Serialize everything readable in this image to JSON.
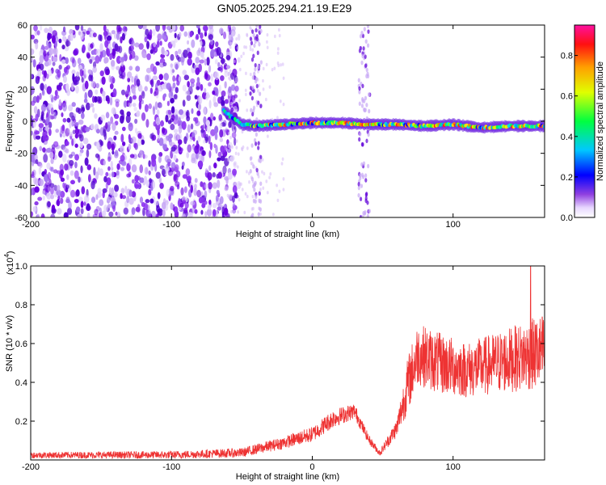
{
  "title": "GN05.2025.294.21.19.E29",
  "chart_data": [
    {
      "type": "heatmap",
      "xlabel": "Height of straight line (km)",
      "ylabel": "Frequency (Hz)",
      "xlim": [
        -200,
        165
      ],
      "ylim": [
        -60,
        60
      ],
      "xticks": [
        -200,
        -100,
        0,
        100
      ],
      "yticks": [
        -60,
        -40,
        -20,
        0,
        20,
        40,
        60
      ],
      "colorbar": {
        "label": "Normalized spectral amplitude",
        "range": [
          0,
          0.95
        ],
        "ticks": [
          0.0,
          0.2,
          0.4,
          0.6,
          0.8
        ]
      },
      "signal_track": [
        {
          "x": -63,
          "y": 7
        },
        {
          "x": -58,
          "y": 3
        },
        {
          "x": -50,
          "y": -2
        },
        {
          "x": -40,
          "y": -3
        },
        {
          "x": -20,
          "y": -2
        },
        {
          "x": 0,
          "y": -1
        },
        {
          "x": 20,
          "y": -1
        },
        {
          "x": 40,
          "y": -2
        },
        {
          "x": 60,
          "y": -2
        },
        {
          "x": 80,
          "y": -3
        },
        {
          "x": 100,
          "y": -2
        },
        {
          "x": 120,
          "y": -4
        },
        {
          "x": 140,
          "y": -3
        },
        {
          "x": 165,
          "y": -3
        }
      ],
      "noise_region_x": [
        -200,
        -60
      ],
      "vertical_streaks_x": [
        -40,
        37
      ]
    },
    {
      "type": "line",
      "xlabel": "Height of straight line (km)",
      "ylabel": "SNR (10 * v/v)",
      "yscale_label": "(x10",
      "yscale_exp": "4",
      "yscale_suffix": ")",
      "xlim": [
        -200,
        165
      ],
      "ylim": [
        0,
        1.0
      ],
      "xticks": [
        -200,
        -100,
        0,
        100
      ],
      "yticks": [
        0.2,
        0.4,
        0.6,
        0.8,
        1.0
      ],
      "color": "#ee3333",
      "envelope": [
        {
          "x": -200,
          "base": 0.02,
          "amp": 0.02
        },
        {
          "x": -100,
          "base": 0.02,
          "amp": 0.025
        },
        {
          "x": -50,
          "base": 0.03,
          "amp": 0.03
        },
        {
          "x": -20,
          "base": 0.08,
          "amp": 0.04
        },
        {
          "x": 0,
          "base": 0.12,
          "amp": 0.05
        },
        {
          "x": 15,
          "base": 0.2,
          "amp": 0.06
        },
        {
          "x": 30,
          "base": 0.24,
          "amp": 0.05
        },
        {
          "x": 40,
          "base": 0.1,
          "amp": 0.03
        },
        {
          "x": 48,
          "base": 0.03,
          "amp": 0.02
        },
        {
          "x": 60,
          "base": 0.15,
          "amp": 0.06
        },
        {
          "x": 68,
          "base": 0.35,
          "amp": 0.18
        },
        {
          "x": 75,
          "base": 0.5,
          "amp": 0.2
        },
        {
          "x": 90,
          "base": 0.45,
          "amp": 0.2
        },
        {
          "x": 110,
          "base": 0.42,
          "amp": 0.18
        },
        {
          "x": 130,
          "base": 0.45,
          "amp": 0.2
        },
        {
          "x": 150,
          "base": 0.48,
          "amp": 0.22
        },
        {
          "x": 165,
          "base": 0.5,
          "amp": 0.25
        }
      ],
      "peak": {
        "x": 155,
        "y": 1.0
      }
    }
  ]
}
